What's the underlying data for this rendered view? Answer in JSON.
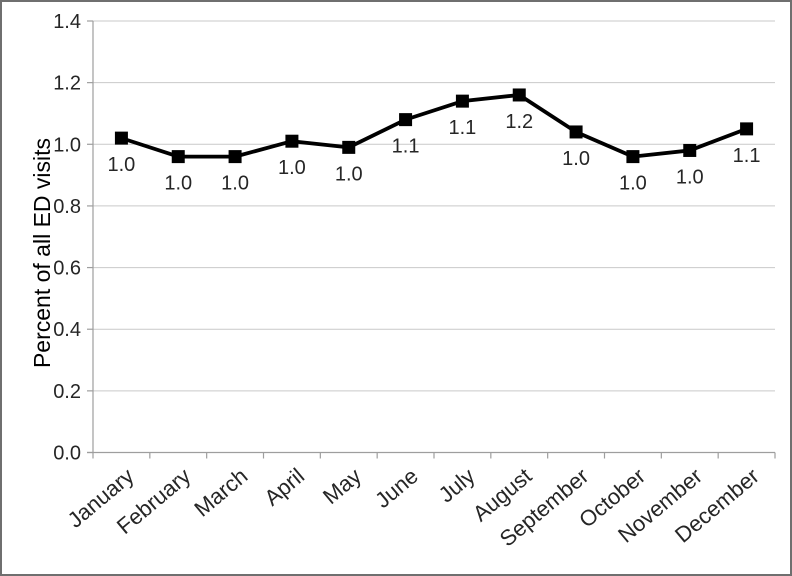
{
  "chart_data": {
    "type": "line",
    "title": "",
    "xlabel": "",
    "ylabel": "Percent of all ED visits",
    "categories": [
      "January",
      "February",
      "March",
      "April",
      "May",
      "June",
      "July",
      "August",
      "September",
      "October",
      "November",
      "December"
    ],
    "series": [
      {
        "name": "Percent of all ED visits",
        "values": [
          1.02,
          0.96,
          0.96,
          1.01,
          0.99,
          1.08,
          1.14,
          1.16,
          1.04,
          0.96,
          0.98,
          1.05
        ],
        "point_labels": [
          "1.0",
          "1.0",
          "1.0",
          "1.0",
          "1.0",
          "1.1",
          "1.1",
          "1.2",
          "1.0",
          "1.0",
          "1.0",
          "1.1"
        ]
      }
    ],
    "ylim": [
      0.0,
      1.4
    ],
    "ytick_step": 0.2,
    "ytick_labels": [
      "0.0",
      "0.2",
      "0.4",
      "0.6",
      "0.8",
      "1.0",
      "1.2",
      "1.4"
    ],
    "grid": "horizontal",
    "legend": "none",
    "marker": "square",
    "x_label_rotation_deg": -40,
    "colors": {
      "series_line": "#000000",
      "marker_fill": "#000000",
      "gridline": "#c9c9c9",
      "axis_line": "#9e9e9e",
      "text": "#262626",
      "frame_border": "#6f6f6f",
      "background": "#ffffff"
    }
  }
}
